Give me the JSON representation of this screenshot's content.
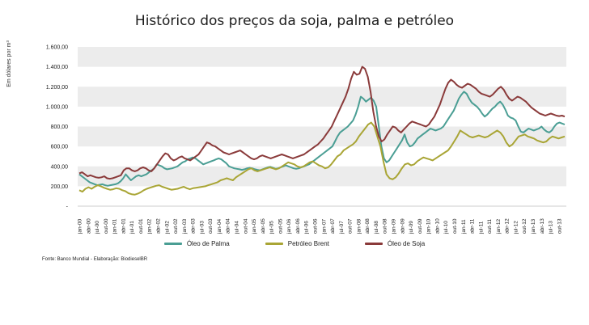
{
  "chart_data": {
    "type": "line",
    "title": "Histórico dos preços da soja, palma e petróleo",
    "ylabel": "Em dólares por m³",
    "xlabel": "",
    "ylim": [
      0,
      1600
    ],
    "yticks": [
      "-",
      "200,00",
      "400,00",
      "600,00",
      "800,00",
      "1.000,00",
      "1.200,00",
      "1.400,00",
      "1.600,00"
    ],
    "grid": "horizontal alternating bands",
    "legend_position": "bottom",
    "source": "Fonte: Banco Mundial - Elaboração: BiodieselBR",
    "x_tick_labels": [
      "jan-00",
      "abr-00",
      "jul-00",
      "out-00",
      "jan-01",
      "abr-01",
      "jul-01",
      "out-01",
      "jan-02",
      "abr-02",
      "jul-02",
      "out-02",
      "jan-03",
      "abr-03",
      "jul-03",
      "out-03",
      "jan-04",
      "abr-04",
      "jul-04",
      "out-04",
      "jan-05",
      "abr-05",
      "jul-05",
      "out-05",
      "jan-06",
      "abr-06",
      "jul-06",
      "out-06",
      "jan-07",
      "abr-07",
      "jul-07",
      "out-07",
      "jan-08",
      "abr-08",
      "jul-08",
      "out-08",
      "jan-09",
      "abr-09",
      "jul-09",
      "out-09",
      "jan-10",
      "abr-10",
      "jul-10",
      "out-10",
      "jan-11",
      "abr-11",
      "jul-11",
      "out-11",
      "jan-12",
      "abr-12",
      "jul-12",
      "out-12",
      "jan-13",
      "abr-13",
      "jul-13",
      "out-13"
    ],
    "series": [
      {
        "name": "Óleo de Palma",
        "color": "#4a9e94",
        "values": [
          320,
          300,
          280,
          260,
          240,
          230,
          220,
          210,
          215,
          220,
          210,
          205,
          210,
          215,
          220,
          230,
          250,
          280,
          320,
          290,
          260,
          280,
          300,
          310,
          300,
          310,
          320,
          340,
          360,
          380,
          420,
          410,
          400,
          380,
          370,
          375,
          380,
          390,
          400,
          420,
          440,
          450,
          470,
          480,
          490,
          480,
          460,
          440,
          420,
          430,
          440,
          450,
          460,
          470,
          480,
          470,
          450,
          430,
          400,
          390,
          380,
          375,
          370,
          365,
          370,
          380,
          385,
          380,
          370,
          365,
          360,
          370,
          380,
          390,
          395,
          385,
          375,
          380,
          390,
          400,
          410,
          400,
          390,
          380,
          375,
          380,
          390,
          400,
          410,
          420,
          440,
          460,
          480,
          500,
          520,
          540,
          560,
          580,
          600,
          650,
          700,
          740,
          760,
          780,
          800,
          830,
          860,
          920,
          1000,
          1100,
          1080,
          1050,
          1070,
          1090,
          1060,
          1000,
          800,
          600,
          480,
          440,
          460,
          500,
          540,
          580,
          620,
          660,
          720,
          640,
          600,
          610,
          640,
          680,
          700,
          720,
          740,
          760,
          780,
          770,
          760,
          770,
          780,
          800,
          840,
          880,
          920,
          960,
          1020,
          1080,
          1120,
          1150,
          1130,
          1080,
          1040,
          1020,
          1000,
          970,
          930,
          900,
          920,
          950,
          980,
          1000,
          1030,
          1050,
          1020,
          970,
          910,
          890,
          880,
          860,
          800,
          750,
          740,
          760,
          780,
          770,
          760,
          770,
          780,
          800,
          770,
          750,
          740,
          760,
          800,
          830,
          840,
          830,
          820
        ],
        "start_index": 0
      },
      {
        "name": "Petróleo Brent",
        "color": "#a9a535",
        "values": [
          160,
          145,
          175,
          190,
          175,
          195,
          210,
          200,
          185,
          175,
          165,
          170,
          180,
          175,
          160,
          150,
          130,
          120,
          115,
          125,
          140,
          160,
          175,
          185,
          195,
          205,
          210,
          195,
          185,
          175,
          165,
          170,
          175,
          185,
          195,
          180,
          170,
          180,
          185,
          190,
          195,
          200,
          210,
          220,
          230,
          240,
          260,
          270,
          280,
          270,
          260,
          290,
          310,
          330,
          350,
          370,
          380,
          360,
          350,
          360,
          370,
          380,
          390,
          380,
          370,
          380,
          400,
          420,
          440,
          430,
          420,
          400,
          390,
          400,
          420,
          440,
          450,
          430,
          410,
          400,
          380,
          390,
          420,
          460,
          500,
          520,
          560,
          580,
          600,
          620,
          650,
          700,
          740,
          780,
          820,
          840,
          800,
          700,
          600,
          450,
          320,
          280,
          270,
          290,
          330,
          380,
          420,
          430,
          410,
          420,
          450,
          470,
          490,
          480,
          470,
          460,
          480,
          500,
          520,
          540,
          560,
          600,
          650,
          700,
          760,
          740,
          720,
          700,
          690,
          700,
          710,
          700,
          690,
          700,
          720,
          740,
          760,
          740,
          700,
          640,
          600,
          620,
          660,
          700,
          710,
          720,
          700,
          690,
          680,
          660,
          650,
          640,
          650,
          680,
          700,
          690,
          680,
          690,
          700
        ],
        "start_index": 0
      },
      {
        "name": "Óleo de Soja",
        "color": "#8a3a3a",
        "values": [
          330,
          340,
          320,
          300,
          310,
          300,
          290,
          285,
          290,
          300,
          280,
          275,
          280,
          290,
          300,
          310,
          360,
          380,
          380,
          360,
          350,
          360,
          380,
          390,
          380,
          360,
          350,
          380,
          420,
          460,
          500,
          530,
          520,
          480,
          460,
          470,
          490,
          500,
          480,
          470,
          460,
          480,
          500,
          520,
          560,
          600,
          640,
          630,
          610,
          600,
          580,
          560,
          540,
          530,
          520,
          530,
          540,
          550,
          560,
          540,
          520,
          500,
          480,
          470,
          480,
          500,
          510,
          500,
          490,
          480,
          490,
          500,
          510,
          520,
          510,
          500,
          490,
          480,
          490,
          500,
          510,
          520,
          540,
          560,
          580,
          600,
          620,
          650,
          680,
          720,
          760,
          800,
          860,
          920,
          980,
          1040,
          1100,
          1180,
          1280,
          1350,
          1320,
          1330,
          1400,
          1380,
          1300,
          1150,
          950,
          800,
          700,
          650,
          670,
          720,
          760,
          800,
          790,
          760,
          740,
          770,
          800,
          830,
          850,
          840,
          830,
          820,
          810,
          800,
          820,
          860,
          900,
          960,
          1020,
          1100,
          1180,
          1240,
          1270,
          1250,
          1220,
          1200,
          1190,
          1210,
          1230,
          1220,
          1200,
          1180,
          1150,
          1130,
          1120,
          1110,
          1100,
          1120,
          1150,
          1180,
          1200,
          1170,
          1120,
          1080,
          1060,
          1080,
          1100,
          1090,
          1070,
          1050,
          1020,
          990,
          970,
          950,
          930,
          920,
          910,
          920,
          930,
          920,
          910,
          905,
          910,
          900
        ]
      }
    ]
  },
  "legend": {
    "palma": "Óleo de Palma",
    "brent": "Petróleo Brent",
    "soja": "Óleo de Soja"
  }
}
